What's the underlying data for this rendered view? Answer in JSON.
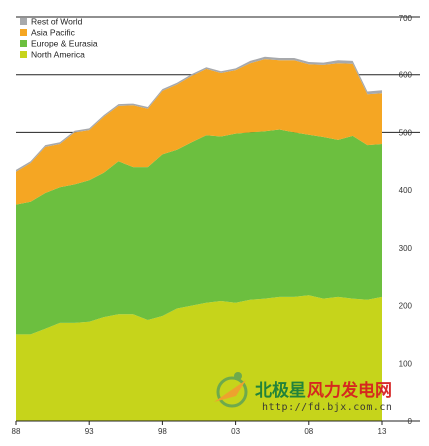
{
  "colors": {
    "rest_of_world": "#a7a9ac",
    "asia_pacific": "#f5a623",
    "europe_eurasia": "#6cbf3f",
    "north_america": "#c6d41b"
  },
  "watermark": {
    "name_part1": "北极星",
    "name_part2": "风力发电网",
    "url": "http://fd.bjx.com.cn"
  },
  "chart_data": {
    "type": "area",
    "stacked": true,
    "x": [
      1988,
      1989,
      1990,
      1991,
      1992,
      1993,
      1994,
      1995,
      1996,
      1997,
      1998,
      1999,
      2000,
      2001,
      2002,
      2003,
      2004,
      2005,
      2006,
      2007,
      2008,
      2009,
      2010,
      2011,
      2012,
      2013
    ],
    "x_tick_labels": [
      "88",
      "93",
      "98",
      "03",
      "08",
      "13"
    ],
    "x_tick_positions": [
      1988,
      1993,
      1998,
      2003,
      2008,
      2013
    ],
    "ylim": [
      0,
      700
    ],
    "y_ticks": [
      0,
      100,
      200,
      300,
      400,
      500,
      600,
      700
    ],
    "y_axis_side": "right",
    "reference_lines": [
      500,
      600
    ],
    "legend_position": "top-left",
    "series": [
      {
        "name": "North America",
        "values": [
          150,
          150,
          160,
          170,
          170,
          172,
          180,
          185,
          185,
          175,
          182,
          195,
          200,
          205,
          208,
          205,
          210,
          212,
          215,
          215,
          218,
          212,
          215,
          212,
          210,
          215
        ]
      },
      {
        "name": "Europe & Eurasia",
        "values": [
          225,
          230,
          235,
          235,
          240,
          245,
          250,
          265,
          255,
          265,
          280,
          275,
          283,
          290,
          285,
          293,
          290,
          290,
          290,
          285,
          278,
          280,
          272,
          282,
          268,
          265
        ]
      },
      {
        "name": "Asia Pacific",
        "values": [
          57,
          67,
          80,
          75,
          90,
          87,
          97,
          96,
          107,
          101,
          110,
          113,
          115,
          115,
          110,
          110,
          120,
          125,
          120,
          125,
          122,
          125,
          133,
          125,
          88,
          88
        ]
      },
      {
        "name": "Rest of World",
        "values": [
          3,
          3,
          3,
          3,
          3,
          3,
          3,
          3,
          3,
          3,
          3,
          3,
          3,
          3,
          3,
          3,
          4,
          4,
          4,
          4,
          4,
          4,
          5,
          5,
          5,
          5
        ]
      }
    ]
  }
}
